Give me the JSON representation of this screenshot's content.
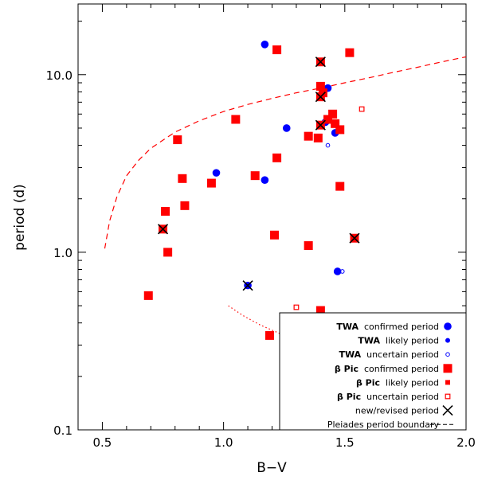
{
  "chart_data": {
    "type": "scatter",
    "title": "",
    "xlabel": "B−V",
    "ylabel": "period (d)",
    "xlim": [
      0.4,
      2.0
    ],
    "ylim": [
      0.1,
      25
    ],
    "yscale": "log",
    "xticks": [
      "0.5",
      "1.0",
      "1.5",
      "2.0"
    ],
    "yticks": [
      "0.1",
      "1.0",
      "10.0"
    ],
    "colors": {
      "twa": "#0000ff",
      "beta_pic": "#ff0000",
      "marker_x": "#000000"
    },
    "series": [
      {
        "name": "TWA confirmed period",
        "marker": "circle-filled",
        "color": "#0000ff",
        "points": [
          [
            1.17,
            14.8
          ],
          [
            0.97,
            2.8
          ],
          [
            1.17,
            2.55
          ],
          [
            1.26,
            5.0
          ],
          [
            1.43,
            8.4
          ],
          [
            1.42,
            5.4
          ],
          [
            1.46,
            4.7
          ],
          [
            1.1,
            0.65
          ],
          [
            1.47,
            0.78
          ]
        ]
      },
      {
        "name": "TWA likely period",
        "marker": "circle-small",
        "color": "#0000ff",
        "points": []
      },
      {
        "name": "TWA uncertain period",
        "marker": "circle-open",
        "color": "#0000ff",
        "points": [
          [
            1.43,
            4.0
          ],
          [
            1.49,
            0.78
          ]
        ]
      },
      {
        "name": "β Pic confirmed period",
        "marker": "square-filled",
        "color": "#ff0000",
        "points": [
          [
            1.22,
            13.8
          ],
          [
            1.52,
            13.3
          ],
          [
            1.4,
            11.8
          ],
          [
            1.4,
            8.6
          ],
          [
            1.41,
            7.9
          ],
          [
            1.4,
            7.5
          ],
          [
            1.45,
            6.0
          ],
          [
            1.43,
            5.6
          ],
          [
            1.46,
            5.3
          ],
          [
            1.4,
            5.2
          ],
          [
            1.48,
            4.9
          ],
          [
            1.35,
            4.5
          ],
          [
            1.39,
            4.4
          ],
          [
            1.05,
            5.6
          ],
          [
            0.81,
            4.3
          ],
          [
            1.22,
            3.4
          ],
          [
            1.13,
            2.7
          ],
          [
            0.83,
            2.6
          ],
          [
            0.95,
            2.45
          ],
          [
            1.48,
            2.35
          ],
          [
            0.84,
            1.83
          ],
          [
            0.76,
            1.7
          ],
          [
            0.75,
            1.35
          ],
          [
            1.54,
            1.2
          ],
          [
            1.21,
            1.25
          ],
          [
            1.35,
            1.09
          ],
          [
            0.77,
            1.0
          ],
          [
            0.69,
            0.57
          ],
          [
            1.4,
            0.47
          ],
          [
            1.19,
            0.34
          ]
        ]
      },
      {
        "name": "β Pic likely period",
        "marker": "square-small",
        "color": "#ff0000",
        "points": []
      },
      {
        "name": "β Pic uncertain period",
        "marker": "square-open",
        "color": "#ff0000",
        "points": [
          [
            1.57,
            6.4
          ],
          [
            1.3,
            0.49
          ]
        ]
      },
      {
        "name": "new/revised period",
        "marker": "x",
        "color": "#000000",
        "points": [
          [
            1.4,
            11.8
          ],
          [
            1.4,
            7.5
          ],
          [
            1.4,
            5.2
          ],
          [
            0.75,
            1.35
          ],
          [
            1.54,
            1.2
          ],
          [
            1.1,
            0.65
          ]
        ]
      }
    ],
    "curves": [
      {
        "name": "Pleiades period boundary",
        "style": "dashed",
        "color": "#ff0000",
        "points": [
          [
            0.51,
            1.05
          ],
          [
            0.53,
            1.5
          ],
          [
            0.56,
            2.05
          ],
          [
            0.6,
            2.7
          ],
          [
            0.65,
            3.3
          ],
          [
            0.7,
            3.85
          ],
          [
            0.8,
            4.75
          ],
          [
            0.9,
            5.5
          ],
          [
            1.0,
            6.2
          ],
          [
            1.1,
            6.8
          ],
          [
            1.2,
            7.35
          ],
          [
            1.3,
            7.9
          ],
          [
            1.4,
            8.4
          ],
          [
            1.5,
            9.0
          ],
          [
            1.6,
            9.6
          ],
          [
            1.7,
            10.3
          ],
          [
            1.8,
            11.0
          ],
          [
            1.9,
            11.8
          ],
          [
            2.0,
            12.6
          ]
        ]
      },
      {
        "name": "",
        "style": "dotted",
        "color": "#ff0000",
        "points": [
          [
            1.02,
            0.5
          ],
          [
            1.08,
            0.44
          ],
          [
            1.15,
            0.39
          ],
          [
            1.25,
            0.34
          ],
          [
            1.4,
            0.29
          ],
          [
            1.55,
            0.26
          ],
          [
            1.7,
            0.24
          ],
          [
            1.85,
            0.225
          ],
          [
            2.0,
            0.21
          ]
        ]
      }
    ],
    "legend": {
      "placement": "bottom-right",
      "entries": [
        {
          "group": "TWA",
          "desc": "confirmed period",
          "marker": "circle-filled",
          "color": "#0000ff"
        },
        {
          "group": "TWA",
          "desc": "likely period",
          "marker": "circle-small",
          "color": "#0000ff"
        },
        {
          "group": "TWA",
          "desc": "uncertain period",
          "marker": "circle-open",
          "color": "#0000ff"
        },
        {
          "group": "β Pic",
          "desc": "confirmed period",
          "marker": "square-filled",
          "color": "#ff0000"
        },
        {
          "group": "β Pic",
          "desc": "likely period",
          "marker": "square-small",
          "color": "#ff0000"
        },
        {
          "group": "β Pic",
          "desc": "uncertain period",
          "marker": "square-open",
          "color": "#ff0000"
        },
        {
          "group": "",
          "desc": "new/revised period",
          "marker": "x",
          "color": "#000000"
        },
        {
          "group": "",
          "desc": "Pleiades period boundary",
          "marker": "dashed-line",
          "color": "#000000"
        }
      ]
    }
  }
}
